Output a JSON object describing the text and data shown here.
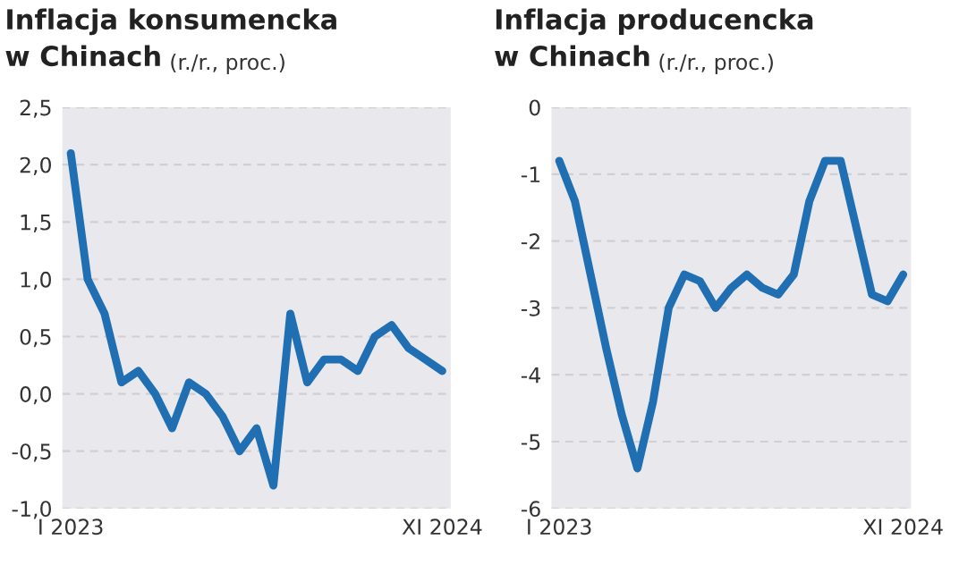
{
  "chart_data": [
    {
      "type": "line",
      "title": "Inflacja konsumencka\nw Chinach",
      "subtitle": "(r./r., proc.)",
      "categories": [
        "I 2023",
        null,
        null,
        null,
        null,
        null,
        null,
        null,
        null,
        null,
        null,
        null,
        null,
        null,
        null,
        null,
        null,
        null,
        null,
        null,
        null,
        null,
        "XI 2024"
      ],
      "series": [
        {
          "color": "#1f6fb2",
          "values": [
            2.1,
            1.0,
            0.7,
            0.1,
            0.2,
            0.0,
            -0.3,
            0.1,
            0.0,
            -0.2,
            -0.5,
            -0.3,
            -0.8,
            0.7,
            0.1,
            0.3,
            0.3,
            0.2,
            0.5,
            0.6,
            0.4,
            0.3,
            0.2
          ]
        }
      ],
      "ylim": [
        -1.0,
        2.5
      ],
      "yticks": [
        {
          "value": -1.0,
          "label": "-1,0"
        },
        {
          "value": -0.5,
          "label": "-0,5"
        },
        {
          "value": 0.0,
          "label": "0,0"
        },
        {
          "value": 0.5,
          "label": "0,5"
        },
        {
          "value": 1.0,
          "label": "1,0"
        },
        {
          "value": 1.5,
          "label": "1,5"
        },
        {
          "value": 2.0,
          "label": "2,0"
        },
        {
          "value": 2.5,
          "label": "2,5"
        }
      ],
      "grid": "y",
      "marker": "none",
      "line_style": "solid"
    },
    {
      "type": "line",
      "title": "Inflacja producencka\nw Chinach",
      "subtitle": "(r./r., proc.)",
      "categories": [
        "I 2023",
        null,
        null,
        null,
        null,
        null,
        null,
        null,
        null,
        null,
        null,
        null,
        null,
        null,
        null,
        null,
        null,
        null,
        null,
        null,
        null,
        null,
        "XI 2024"
      ],
      "series": [
        {
          "color": "#1f6fb2",
          "values": [
            -0.8,
            -1.4,
            -2.5,
            -3.6,
            -4.6,
            -5.4,
            -4.4,
            -3.0,
            -2.5,
            -2.6,
            -3.0,
            -2.7,
            -2.5,
            -2.7,
            -2.8,
            -2.5,
            -1.4,
            -0.8,
            -0.8,
            -1.8,
            -2.8,
            -2.9,
            -2.5
          ]
        }
      ],
      "ylim": [
        -6,
        0
      ],
      "yticks": [
        -6,
        -5,
        -4,
        -3,
        -2,
        -1,
        0
      ],
      "grid": "y",
      "marker": "none",
      "line_style": "solid"
    }
  ]
}
